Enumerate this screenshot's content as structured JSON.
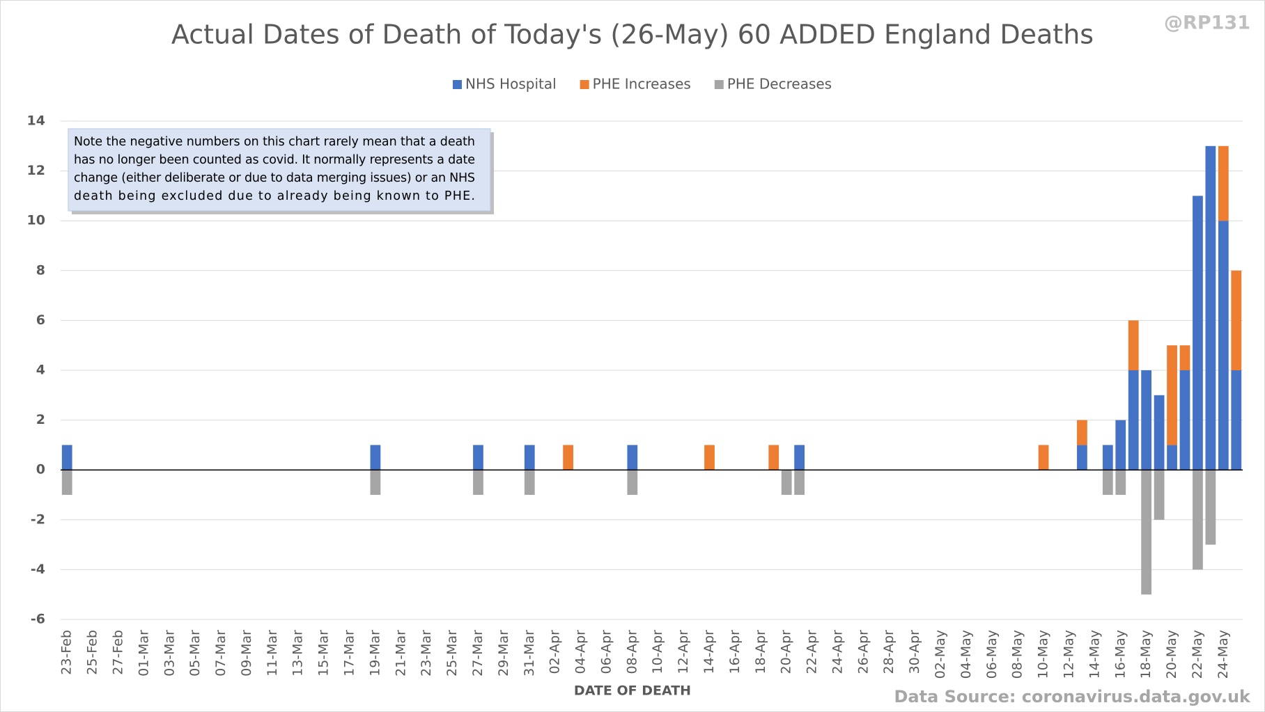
{
  "chart_data": {
    "type": "stacked_bar",
    "title": "Actual Dates of Death of Today's (26-May) 60 ADDED England Deaths",
    "watermark": "@RP131",
    "x_label": "DATE OF DEATH",
    "source": "Data Source: coronavirus.data.gov.uk",
    "note": [
      "Note the negative numbers on this chart rarely mean that a death",
      "has no longer been counted as covid. It normally represents a date",
      "change (either deliberate or due to data merging issues) or an NHS",
      "death being excluded due to already being known to PHE."
    ],
    "categories": [
      "23-Feb",
      null,
      "25-Feb",
      null,
      "27-Feb",
      null,
      "01-Mar",
      null,
      "03-Mar",
      null,
      "05-Mar",
      null,
      "07-Mar",
      null,
      "09-Mar",
      null,
      "11-Mar",
      null,
      "13-Mar",
      null,
      "15-Mar",
      null,
      "17-Mar",
      null,
      "19-Mar",
      null,
      "21-Mar",
      null,
      "23-Mar",
      null,
      "25-Mar",
      null,
      "27-Mar",
      null,
      "29-Mar",
      null,
      "31-Mar",
      null,
      "02-Apr",
      null,
      "04-Apr",
      null,
      "06-Apr",
      null,
      "08-Apr",
      null,
      "10-Apr",
      null,
      "12-Apr",
      null,
      "14-Apr",
      null,
      "16-Apr",
      null,
      "18-Apr",
      null,
      "20-Apr",
      null,
      "22-Apr",
      null,
      "24-Apr",
      null,
      "26-Apr",
      null,
      "28-Apr",
      null,
      "30-Apr",
      null,
      "02-May",
      null,
      "04-May",
      null,
      "06-May",
      null,
      "08-May",
      null,
      "10-May",
      null,
      "12-May",
      null,
      "14-May",
      null,
      "16-May",
      null,
      "18-May",
      null,
      "20-May",
      null,
      "22-May",
      null,
      "24-May",
      null
    ],
    "series": [
      {
        "name": "NHS Hospital",
        "color": "#4472c4",
        "values": [
          1,
          0,
          0,
          0,
          0,
          0,
          0,
          0,
          0,
          0,
          0,
          0,
          0,
          0,
          0,
          0,
          0,
          0,
          0,
          0,
          0,
          0,
          0,
          0,
          1,
          0,
          0,
          0,
          0,
          0,
          0,
          0,
          1,
          0,
          0,
          0,
          1,
          0,
          0,
          0,
          0,
          0,
          0,
          0,
          1,
          0,
          0,
          0,
          0,
          0,
          0,
          0,
          0,
          0,
          0,
          0,
          0,
          1,
          0,
          0,
          0,
          0,
          0,
          0,
          0,
          0,
          0,
          0,
          0,
          0,
          0,
          0,
          0,
          0,
          0,
          0,
          0,
          0,
          0,
          1,
          0,
          1,
          2,
          4,
          4,
          3,
          1,
          4,
          11,
          13,
          10,
          4
        ]
      },
      {
        "name": "PHE Increases",
        "color": "#ed7d31",
        "values": [
          0,
          0,
          0,
          0,
          0,
          0,
          0,
          0,
          0,
          0,
          0,
          0,
          0,
          0,
          0,
          0,
          0,
          0,
          0,
          0,
          0,
          0,
          0,
          0,
          0,
          0,
          0,
          0,
          0,
          0,
          0,
          0,
          0,
          0,
          0,
          0,
          0,
          0,
          0,
          1,
          0,
          0,
          0,
          0,
          0,
          0,
          0,
          0,
          0,
          0,
          1,
          0,
          0,
          0,
          0,
          1,
          0,
          0,
          0,
          0,
          0,
          0,
          0,
          0,
          0,
          0,
          0,
          0,
          0,
          0,
          0,
          0,
          0,
          0,
          0,
          0,
          1,
          0,
          0,
          1,
          0,
          0,
          0,
          2,
          0,
          0,
          4,
          1,
          0,
          0,
          3,
          4
        ]
      },
      {
        "name": "PHE Decreases",
        "color": "#a5a5a5",
        "values": [
          -1,
          0,
          0,
          0,
          0,
          0,
          0,
          0,
          0,
          0,
          0,
          0,
          0,
          0,
          0,
          0,
          0,
          0,
          0,
          0,
          0,
          0,
          0,
          0,
          -1,
          0,
          0,
          0,
          0,
          0,
          0,
          0,
          -1,
          0,
          0,
          0,
          -1,
          0,
          0,
          0,
          0,
          0,
          0,
          0,
          -1,
          0,
          0,
          0,
          0,
          0,
          0,
          0,
          0,
          0,
          0,
          0,
          -1,
          -1,
          0,
          0,
          0,
          0,
          0,
          0,
          0,
          0,
          0,
          0,
          0,
          0,
          0,
          0,
          0,
          0,
          0,
          0,
          0,
          0,
          0,
          0,
          0,
          -1,
          -1,
          0,
          -5,
          -2,
          0,
          0,
          -4,
          -3,
          0,
          0
        ]
      }
    ],
    "ylim": [
      -6,
      14
    ],
    "yticks": [
      -6,
      -4,
      -2,
      0,
      2,
      4,
      6,
      8,
      10,
      12,
      14
    ],
    "grid": true,
    "legend": "top"
  }
}
